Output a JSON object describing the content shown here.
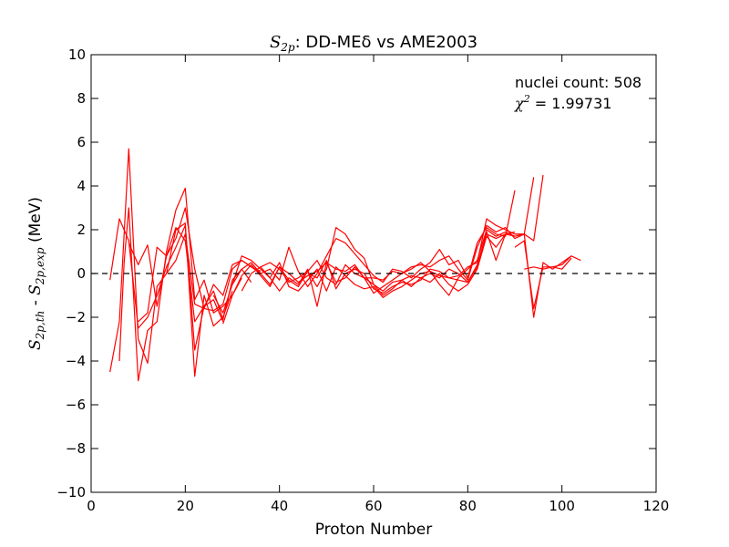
{
  "chart_data": {
    "type": "line",
    "title_symbol": "S",
    "title_symbol_sub": "2p",
    "title": ":  DD-MEδ vs AME2003",
    "xlabel": "Proton Number",
    "ylabel_prefix_symbol": "S",
    "ylabel_prefix_sub": "2p,th",
    "ylabel_mid": " - ",
    "ylabel_suffix_symbol": "S",
    "ylabel_suffix_sub": "2p,exp",
    "ylabel_unit": "  (MeV)",
    "xlim": [
      0,
      120
    ],
    "ylim": [
      -10,
      10
    ],
    "xticks": [
      "0",
      "20",
      "40",
      "60",
      "80",
      "100",
      "120"
    ],
    "yticks": [
      "−10",
      "−8",
      "−6",
      "−4",
      "−2",
      "0",
      "2",
      "4",
      "6",
      "8",
      "10"
    ],
    "annotation_count": "nuclei count: 508",
    "annotation_chi_symbol": "χ",
    "annotation_chi_sup": "2",
    "annotation_chi_value": " = 1.99731",
    "reference_line": {
      "y": 0,
      "style": "dashed",
      "color": "#000000"
    },
    "series_color": "#ff0000",
    "series": [
      {
        "x": [
          4,
          6,
          8,
          10,
          12,
          14,
          16,
          18,
          20,
          22,
          24,
          26,
          28
        ],
        "values": [
          -0.3,
          2.5,
          1.5,
          -2.5,
          -2.0,
          -1.0,
          0.3,
          1.2,
          2.2,
          -3.5,
          -1.5,
          -1.2,
          -2.2
        ]
      },
      {
        "x": [
          4,
          6,
          8,
          10,
          12,
          14,
          16,
          18,
          20,
          22,
          24,
          26,
          28,
          30
        ],
        "values": [
          -4.5,
          -2.2,
          5.7,
          -3.0,
          -4.1,
          -0.6,
          0.0,
          2.0,
          2.3,
          -4.7,
          -1.0,
          -2.4,
          -2.0,
          -0.8
        ]
      },
      {
        "x": [
          6,
          7,
          8,
          10,
          12,
          14,
          16,
          18,
          20,
          22,
          24,
          26,
          28,
          30,
          32
        ],
        "values": [
          -4.0,
          0.5,
          3.0,
          -4.9,
          -2.6,
          -2.2,
          1.0,
          2.9,
          3.9,
          -1.2,
          -0.3,
          -1.8,
          -1.5,
          -1.0,
          -0.2
        ]
      },
      {
        "x": [
          8,
          10,
          12,
          14,
          16,
          18,
          20,
          22,
          24,
          26,
          28,
          30,
          32,
          34
        ],
        "values": [
          1.4,
          0.4,
          1.3,
          -1.5,
          0.8,
          2.1,
          1.5,
          -2.2,
          -1.5,
          -0.8,
          -2.1,
          -0.3,
          0.2,
          -0.4
        ]
      },
      {
        "x": [
          10,
          12,
          14,
          16,
          18,
          20,
          22,
          24,
          26,
          28,
          30,
          32,
          34,
          36
        ],
        "values": [
          -2.2,
          -1.8,
          1.2,
          0.8,
          1.6,
          3.0,
          0.2,
          -1.6,
          -0.5,
          -1.0,
          0.4,
          0.6,
          0.3,
          0.1
        ]
      },
      {
        "x": [
          16,
          18,
          20,
          22,
          24,
          26,
          28,
          30,
          32,
          34,
          36,
          38,
          40,
          42,
          44,
          46,
          48,
          50,
          52,
          54,
          56,
          58,
          60,
          62,
          64,
          66,
          68,
          70,
          72,
          74,
          76,
          78,
          80,
          82,
          84,
          86,
          88,
          90,
          92
        ],
        "values": [
          0.0,
          0.6,
          1.8,
          -1.4,
          -1.6,
          -1.7,
          -1.4,
          0.2,
          0.6,
          0.3,
          0.0,
          -0.5,
          0.3,
          -0.3,
          -0.6,
          0.1,
          0.6,
          -0.2,
          -0.5,
          0.4,
          0.0,
          -0.2,
          -0.5,
          -0.8,
          -0.4,
          -0.3,
          -0.1,
          -0.2,
          0.0,
          -0.2,
          0.2,
          0.0,
          -0.4,
          0.4,
          1.8,
          1.6,
          1.8,
          1.7,
          1.8
        ]
      },
      {
        "x": [
          26,
          28,
          30,
          32,
          34,
          36,
          38,
          40,
          42,
          44,
          46,
          48,
          50,
          52,
          54,
          56,
          58,
          60,
          62,
          64,
          66,
          68,
          70,
          72,
          74,
          76,
          78,
          80,
          82,
          84,
          86,
          88,
          90,
          92,
          94
        ],
        "values": [
          -1.0,
          -1.8,
          -0.5,
          0.8,
          0.6,
          0.2,
          -0.2,
          0.5,
          -0.6,
          -0.8,
          -0.3,
          0.2,
          -0.8,
          0.3,
          -0.1,
          -0.5,
          -0.7,
          -0.6,
          -1.1,
          -0.8,
          -0.6,
          -0.3,
          0.0,
          0.1,
          -0.1,
          -0.2,
          -0.1,
          0.3,
          0.5,
          2.5,
          2.2,
          2.0,
          1.8,
          1.8,
          4.4
        ]
      },
      {
        "x": [
          28,
          30,
          32,
          34,
          36,
          38,
          40,
          42,
          44,
          46,
          48,
          50,
          52,
          54,
          56,
          58,
          60,
          62,
          64,
          66,
          68,
          70,
          72,
          74,
          76,
          78,
          80,
          82,
          84,
          86,
          88,
          90,
          92,
          94,
          96
        ],
        "values": [
          -2.3,
          -1.0,
          -0.1,
          0.4,
          -0.1,
          -0.6,
          0.3,
          0.0,
          -0.4,
          -0.1,
          0.1,
          0.5,
          0.2,
          0.1,
          0.4,
          -0.2,
          -0.2,
          -0.3,
          0.1,
          0.0,
          0.3,
          0.4,
          0.3,
          0.6,
          0.8,
          0.2,
          -0.3,
          1.2,
          2.2,
          1.9,
          2.1,
          1.6,
          1.8,
          1.5,
          4.5
        ]
      },
      {
        "x": [
          30,
          32,
          34,
          36,
          38,
          40,
          42,
          44,
          46,
          48,
          50,
          52,
          54,
          56,
          58,
          60,
          62,
          64,
          66,
          68,
          70,
          72,
          74,
          76,
          78,
          80,
          82,
          84,
          86,
          88,
          90
        ],
        "values": [
          -0.5,
          0.2,
          0.5,
          0.0,
          0.2,
          -0.3,
          1.2,
          0.1,
          -0.6,
          0.0,
          0.8,
          1.6,
          1.4,
          0.9,
          0.4,
          -0.1,
          -0.4,
          0.2,
          0.1,
          -0.2,
          0.2,
          0.5,
          1.1,
          0.4,
          0.6,
          -0.2,
          1.4,
          2.1,
          1.8,
          1.7,
          3.8
        ]
      },
      {
        "x": [
          32,
          34,
          36,
          38,
          40,
          42,
          44,
          46,
          48,
          50,
          52,
          54,
          56,
          58,
          60,
          62,
          64,
          66,
          68,
          70,
          72,
          74,
          76,
          78,
          80,
          82,
          84,
          86,
          88,
          90
        ],
        "values": [
          -0.8,
          0.0,
          0.3,
          -0.2,
          -0.8,
          -0.2,
          -0.5,
          0.2,
          -1.5,
          0.5,
          -0.4,
          -0.2,
          0.3,
          -0.2,
          -0.9,
          -0.6,
          -0.3,
          0.0,
          0.2,
          0.5,
          0.1,
          -0.5,
          -1.0,
          -0.2,
          0.2,
          0.6,
          2.0,
          1.7,
          1.9,
          1.7
        ]
      },
      {
        "x": [
          36,
          38,
          40,
          42,
          44,
          46,
          48,
          50,
          52,
          54,
          56,
          58,
          60,
          62,
          64,
          66,
          68,
          70,
          72,
          74,
          76,
          78,
          80,
          82,
          84,
          86,
          88
        ],
        "values": [
          0.3,
          0.5,
          0.2,
          -0.4,
          -0.2,
          0.1,
          -0.6,
          0.2,
          2.1,
          1.8,
          1.1,
          0.7,
          -0.5,
          -1.0,
          -0.7,
          -0.3,
          -0.6,
          -0.2,
          -0.4,
          0.0,
          -0.5,
          -0.8,
          -0.5,
          0.2,
          1.7,
          1.2,
          1.8
        ]
      },
      {
        "x": [
          46,
          48,
          50,
          52,
          54,
          56,
          58,
          60,
          62,
          64,
          66,
          68,
          70,
          72,
          74,
          76,
          78,
          80,
          82,
          84,
          86,
          88,
          90
        ],
        "values": [
          0.0,
          -0.2,
          0.6,
          -0.7,
          0.0,
          0.2,
          0.0,
          -0.7,
          -0.9,
          -0.6,
          -0.4,
          -0.5,
          -0.3,
          0.2,
          0.1,
          -0.2,
          -0.3,
          -0.4,
          0.3,
          1.9,
          0.6,
          1.8,
          1.9
        ]
      },
      {
        "x": [
          90,
          92,
          94,
          96,
          98,
          100,
          102
        ],
        "values": [
          1.2,
          1.5,
          -1.6,
          0.3,
          0.3,
          0.4,
          0.8
        ]
      },
      {
        "x": [
          90,
          92,
          94,
          96,
          98,
          100,
          102,
          104
        ],
        "values": [
          1.8,
          1.8,
          -2.0,
          0.5,
          0.2,
          0.5,
          0.8,
          0.6
        ]
      },
      {
        "x": [
          92,
          94,
          96,
          98,
          100,
          102
        ],
        "values": [
          0.2,
          0.3,
          0.2,
          0.3,
          0.2,
          0.7
        ]
      }
    ]
  }
}
